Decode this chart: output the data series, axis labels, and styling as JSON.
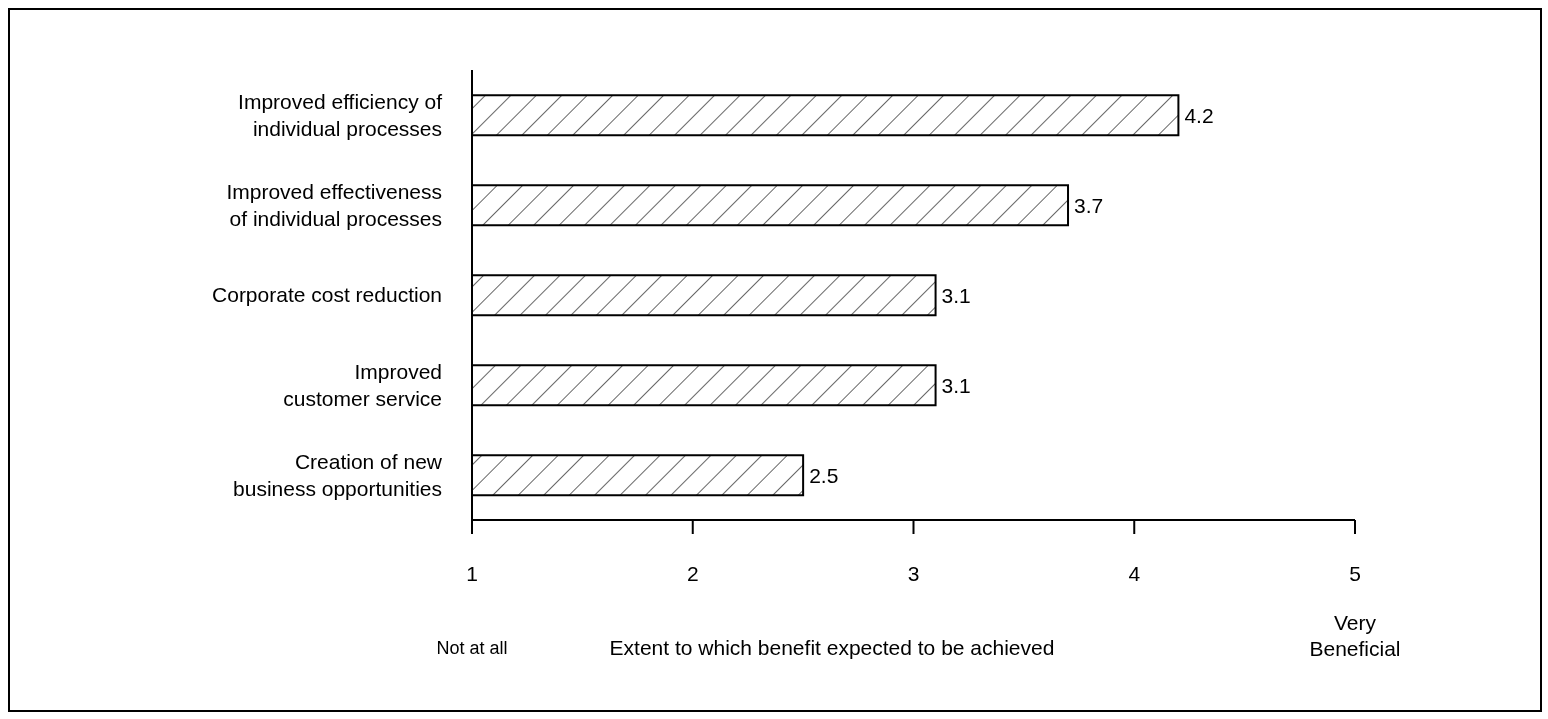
{
  "chart_data": {
    "type": "bar",
    "orientation": "horizontal",
    "xlabel": "Extent to which benefit expected to be achieved",
    "categories": [
      "Improved efficiency of individual processes",
      "Improved effectiveness of individual processes",
      "Corporate cost reduction",
      "Improved customer service",
      "Creation of new business opportunities"
    ],
    "values": [
      4.2,
      3.7,
      3.1,
      3.1,
      2.5
    ],
    "color": "#000000",
    "xlim": [
      1,
      5
    ],
    "xticks": [
      1,
      2,
      3,
      4,
      5
    ],
    "data_labels": true,
    "annotations": [
      "Not at all",
      "Very Beneficial"
    ]
  }
}
